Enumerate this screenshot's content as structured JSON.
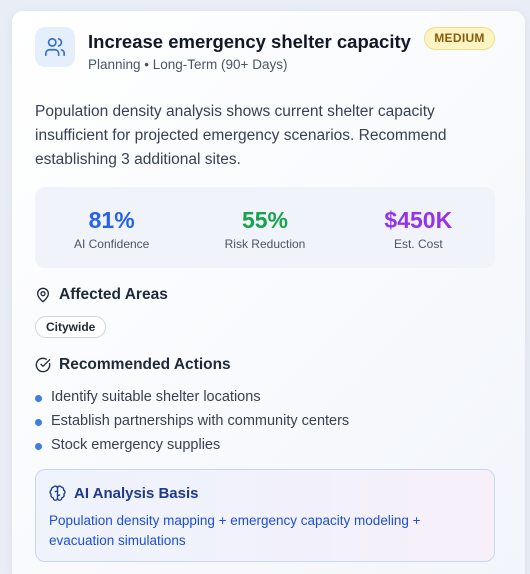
{
  "header": {
    "title": "Increase emergency shelter capacity",
    "subtitle": "Planning • Long-Term (90+ Days)",
    "icon": "users-icon",
    "badge": "MEDIUM"
  },
  "description": "Population density analysis shows current shelter capacity insufficient for projected emergency scenarios. Recommend establishing 3 additional sites.",
  "metrics": [
    {
      "value": "81%",
      "label": "AI Confidence",
      "color": "#2563eb"
    },
    {
      "value": "55%",
      "label": "Risk Reduction",
      "color": "#16a34a"
    },
    {
      "value": "$450K",
      "label": "Est. Cost",
      "color": "#9333ea"
    }
  ],
  "affected_areas": {
    "heading": "Affected Areas",
    "icon": "map-pin-icon",
    "areas": [
      "Citywide"
    ]
  },
  "recommended_actions": {
    "heading": "Recommended Actions",
    "icon": "check-circle-icon",
    "items": [
      "Identify suitable shelter locations",
      "Establish partnerships with community centers",
      "Stock emergency supplies"
    ]
  },
  "analysis_basis": {
    "heading": "AI Analysis Basis",
    "icon": "brain-icon",
    "text": "Population density mapping + emergency capacity modeling + evacuation simulations"
  },
  "colors": {
    "accent": "#3b7de0",
    "badge_bg": "#fdf4c4",
    "badge_text": "#8a5a0b",
    "basis_text": "#1d4ed8"
  }
}
